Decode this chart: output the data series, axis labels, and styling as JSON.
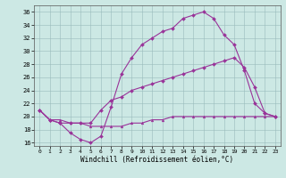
{
  "bg_color": "#cce8e4",
  "line_color": "#993399",
  "grid_color": "#99bbbb",
  "xlim": [
    -0.5,
    23.5
  ],
  "ylim": [
    15.5,
    37.0
  ],
  "yticks": [
    16,
    18,
    20,
    22,
    24,
    26,
    28,
    30,
    32,
    34,
    36
  ],
  "xticks": [
    0,
    1,
    2,
    3,
    4,
    5,
    6,
    7,
    8,
    9,
    10,
    11,
    12,
    13,
    14,
    15,
    16,
    17,
    18,
    19,
    20,
    21,
    22,
    23
  ],
  "xlabel": "Windchill (Refroidissement éolien,°C)",
  "line1_y": [
    21,
    19.5,
    19.0,
    17.5,
    16.5,
    16.0,
    17.0,
    21.5,
    26.5,
    29.0,
    31.0,
    32.0,
    33.0,
    33.5,
    35.0,
    35.5,
    36.0,
    35.0,
    32.5,
    31.0,
    27.0,
    22.0,
    20.5,
    20.0
  ],
  "line2_y": [
    21,
    19.5,
    19.0,
    19.0,
    19.0,
    19.0,
    21.0,
    22.5,
    23.0,
    24.0,
    24.5,
    25.0,
    25.5,
    26.0,
    26.5,
    27.0,
    27.5,
    28.0,
    28.5,
    29.0,
    27.5,
    24.5,
    20.5,
    20.0
  ],
  "line3_y": [
    21,
    19.5,
    19.5,
    19.0,
    19.0,
    18.5,
    18.5,
    18.5,
    18.5,
    19.0,
    19.0,
    19.5,
    19.5,
    20.0,
    20.0,
    20.0,
    20.0,
    20.0,
    20.0,
    20.0,
    20.0,
    20.0,
    20.0,
    20.0
  ],
  "marker1": "D",
  "marker2": "D",
  "marker3": "^"
}
